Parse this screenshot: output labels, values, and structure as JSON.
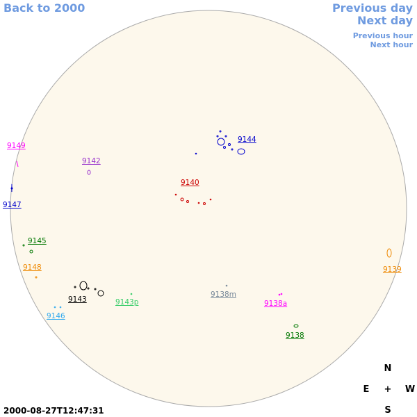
{
  "nav": {
    "back": "Back to 2000",
    "previous_day": "Previous day",
    "next_day": "Next day",
    "previous_hour": "Previous hour",
    "next_hour": "Next hour"
  },
  "regions": [
    "9144",
    "9142",
    "9149",
    "9147",
    "9140",
    "9145",
    "9148",
    "9139",
    "9143",
    "9143p",
    "9138m",
    "9138a",
    "9146",
    "9138"
  ],
  "compass": {
    "north": "N",
    "east": "E",
    "center": "+",
    "west": "W",
    "south": "S"
  },
  "timestamp": "2000-08-27T12:47:31"
}
